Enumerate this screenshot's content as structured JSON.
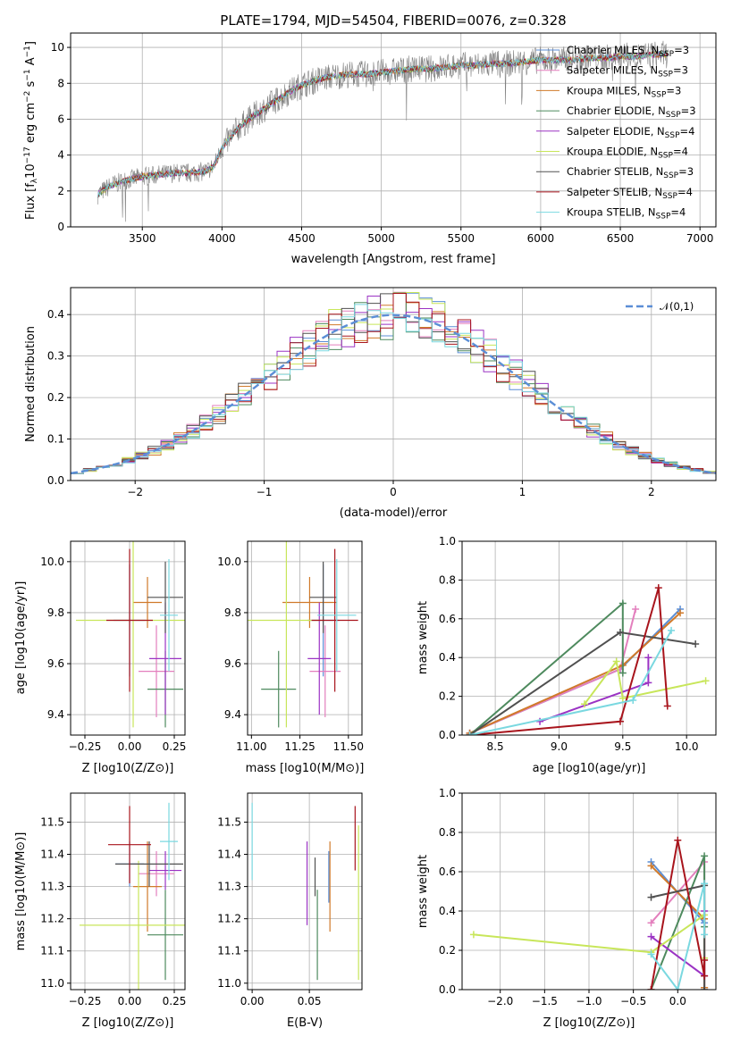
{
  "colors": {
    "chabrier_miles": "#5b8ed6",
    "salpeter_miles": "#e37fbd",
    "kroupa_miles": "#d07a2a",
    "chabrier_elodie": "#4e8a5e",
    "salpeter_elodie": "#9b33c4",
    "kroupa_elodie": "#c8e65a",
    "chabrier_stelib": "#505050",
    "salpeter_stelib": "#a8141c",
    "kroupa_stelib": "#7ad8e0",
    "data": "#808080",
    "gaussian": "#5b8ed6"
  },
  "chart_data": [
    {
      "id": "spectrum",
      "type": "line",
      "title": "PLATE=1794, MJD=54504, FIBERID=0076, z=0.328",
      "xlabel": "wavelength [Angstrom, rest frame]",
      "ylabel": "Flux [f_λ 10^-17 erg cm^-2 s^-1 A^-1]",
      "xlim": [
        3050,
        7100
      ],
      "ylim": [
        0,
        10.8
      ],
      "xticks": [
        "3500",
        "4000",
        "4500",
        "5000",
        "5500",
        "6000",
        "6500",
        "7000"
      ],
      "yticks": [
        "0",
        "2",
        "4",
        "6",
        "8",
        "10"
      ],
      "legend_position": "top-right",
      "legend": [
        "Chabrier MILES, N_SSP=3",
        "Salpeter MILES, N_SSP=3",
        "Kroupa MILES, N_SSP=3",
        "Chabrier ELODIE, N_SSP=3",
        "Salpeter ELODIE, N_SSP=4",
        "Kroupa ELODIE, N_SSP=4",
        "Chabrier STELIB, N_SSP=3",
        "Salpeter STELIB, N_SSP=4",
        "Kroupa STELIB, N_SSP=4"
      ],
      "model_continuum": {
        "x": [
          3220,
          3300,
          3400,
          3500,
          3600,
          3700,
          3800,
          3900,
          3950,
          4000,
          4100,
          4200,
          4300,
          4400,
          4500,
          4600,
          4700,
          4800,
          4900,
          5000,
          5100,
          5200,
          5300,
          5400,
          5500,
          5600,
          5700,
          5800,
          5900,
          6000,
          6100,
          6200,
          6300,
          6400,
          6500,
          6600,
          6700,
          6800
        ],
        "y": [
          1.8,
          2.3,
          2.6,
          2.8,
          2.9,
          3.0,
          3.0,
          3.1,
          3.4,
          4.4,
          5.5,
          6.2,
          6.8,
          7.4,
          7.9,
          8.2,
          8.4,
          8.5,
          8.5,
          8.6,
          8.7,
          8.8,
          8.8,
          8.9,
          9.0,
          9.0,
          9.1,
          9.1,
          9.2,
          9.3,
          9.3,
          9.3,
          9.4,
          9.4,
          9.5,
          9.5,
          9.6,
          9.6
        ]
      },
      "observed": {
        "noise_amplitude": 0.55,
        "x_range": [
          3220,
          6800
        ]
      }
    },
    {
      "id": "residuals",
      "type": "line",
      "xlabel": "(data-model)/error",
      "ylabel": "Normed distribution",
      "xlim": [
        -2.5,
        2.5
      ],
      "ylim": [
        0,
        0.465
      ],
      "xticks": [
        "−2",
        "−1",
        "0",
        "1",
        "2"
      ],
      "yticks": [
        "0.0",
        "0.1",
        "0.2",
        "0.3",
        "0.4"
      ],
      "legend": [
        "𝒩(0,1)"
      ],
      "legend_position": "top-right",
      "gaussian": {
        "mu": 0,
        "sigma": 1
      }
    },
    {
      "id": "age_vs_Z",
      "type": "scatter",
      "xlabel": "Z [log10(Z/Z⊙)]",
      "ylabel": "age [log10(age/yr)]",
      "xlim": [
        -0.33,
        0.31
      ],
      "ylim": [
        9.32,
        10.08
      ],
      "xticks": [
        "−0.25",
        "0.00",
        "0.25"
      ],
      "yticks": [
        "9.4",
        "9.6",
        "9.8",
        "10.0"
      ],
      "points": [
        {
          "model": "chabrier_miles",
          "x": 0.0,
          "xerr": 0.09,
          "y": 9.77,
          "yerr": 0.22
        },
        {
          "model": "salpeter_miles",
          "x": 0.15,
          "xerr": 0.1,
          "y": 9.57,
          "yerr": 0.18
        },
        {
          "model": "kroupa_miles",
          "x": 0.1,
          "xerr": 0.08,
          "y": 9.84,
          "yerr": 0.1
        },
        {
          "model": "chabrier_elodie",
          "x": 0.2,
          "xerr": 0.1,
          "y": 9.5,
          "yerr": 0.15
        },
        {
          "model": "salpeter_elodie",
          "x": 0.2,
          "xerr": 0.09,
          "y": 9.62,
          "yerr": 0.22
        },
        {
          "model": "kroupa_elodie",
          "x": 0.02,
          "xerr": 0.32,
          "y": 9.77,
          "yerr": 0.42
        },
        {
          "model": "chabrier_stelib",
          "x": 0.2,
          "xerr": 0.1,
          "y": 9.86,
          "yerr": 0.14
        },
        {
          "model": "salpeter_stelib",
          "x": 0.0,
          "xerr": 0.13,
          "y": 9.77,
          "yerr": 0.28
        },
        {
          "model": "kroupa_stelib",
          "x": 0.22,
          "xerr": 0.05,
          "y": 9.79,
          "yerr": 0.22
        }
      ]
    },
    {
      "id": "age_vs_mass",
      "type": "scatter",
      "xlabel": "mass [log10(M/M⊙)]",
      "xlim": [
        10.98,
        11.57
      ],
      "ylim": [
        9.32,
        10.08
      ],
      "xticks": [
        "11.00",
        "11.25",
        "11.50"
      ],
      "yticks": [
        "9.4",
        "9.6",
        "9.8",
        "10.0"
      ],
      "points": [
        {
          "model": "chabrier_miles",
          "x": 11.37,
          "xerr": 0.08,
          "y": 9.77,
          "yerr": 0.22
        },
        {
          "model": "salpeter_miles",
          "x": 11.38,
          "xerr": 0.08,
          "y": 9.57,
          "yerr": 0.18
        },
        {
          "model": "kroupa_miles",
          "x": 11.3,
          "xerr": 0.14,
          "y": 9.84,
          "yerr": 0.1
        },
        {
          "model": "chabrier_elodie",
          "x": 11.14,
          "xerr": 0.09,
          "y": 9.5,
          "yerr": 0.15
        },
        {
          "model": "salpeter_elodie",
          "x": 11.35,
          "xerr": 0.06,
          "y": 9.62,
          "yerr": 0.22
        },
        {
          "model": "kroupa_elodie",
          "x": 11.18,
          "xerr": 0.2,
          "y": 9.77,
          "yerr": 0.42
        },
        {
          "model": "chabrier_stelib",
          "x": 11.37,
          "xerr": 0.07,
          "y": 9.86,
          "yerr": 0.14
        },
        {
          "model": "salpeter_stelib",
          "x": 11.43,
          "xerr": 0.12,
          "y": 9.77,
          "yerr": 0.28
        },
        {
          "model": "kroupa_stelib",
          "x": 11.44,
          "xerr": 0.1,
          "y": 9.79,
          "yerr": 0.22
        }
      ]
    },
    {
      "id": "weight_vs_age",
      "type": "line",
      "xlabel": "age [log10(age/yr)]",
      "ylabel": "mass weight",
      "xlim": [
        8.24,
        10.23
      ],
      "ylim": [
        0,
        1.0
      ],
      "xticks": [
        "8.5",
        "9.0",
        "9.5",
        "10.0"
      ],
      "yticks": [
        "0.0",
        "0.2",
        "0.4",
        "0.6",
        "0.8",
        "1.0"
      ],
      "series": [
        {
          "model": "chabrier_miles",
          "x": [
            8.3,
            9.48,
            9.95
          ],
          "y": [
            0.01,
            0.34,
            0.65
          ]
        },
        {
          "model": "salpeter_miles",
          "x": [
            8.3,
            9.48,
            9.6
          ],
          "y": [
            0.01,
            0.34,
            0.65
          ]
        },
        {
          "model": "kroupa_miles",
          "x": [
            8.3,
            9.5,
            9.95
          ],
          "y": [
            0.01,
            0.36,
            0.63
          ]
        },
        {
          "model": "chabrier_elodie",
          "x": [
            8.3,
            9.5,
            9.5
          ],
          "y": [
            0.0,
            0.68,
            0.32
          ]
        },
        {
          "model": "salpeter_elodie",
          "x": [
            8.85,
            9.7,
            9.7
          ],
          "y": [
            0.07,
            0.27,
            0.4
          ]
        },
        {
          "model": "kroupa_elodie",
          "x": [
            9.2,
            9.45,
            9.5,
            10.15
          ],
          "y": [
            0.16,
            0.38,
            0.19,
            0.28
          ]
        },
        {
          "model": "chabrier_stelib",
          "x": [
            8.3,
            9.48,
            10.07
          ],
          "y": [
            0.0,
            0.53,
            0.47
          ]
        },
        {
          "model": "salpeter_stelib",
          "x": [
            8.3,
            9.48,
            9.78,
            9.85
          ],
          "y": [
            0.0,
            0.07,
            0.76,
            0.15
          ]
        },
        {
          "model": "kroupa_stelib",
          "x": [
            8.3,
            9.58,
            9.88
          ],
          "y": [
            0.0,
            0.18,
            0.54
          ]
        }
      ]
    },
    {
      "id": "mass_vs_Z",
      "type": "scatter",
      "xlabel": "Z [log10(Z/Z⊙)]",
      "ylabel": "mass [log10(M/M⊙)]",
      "xlim": [
        -0.33,
        0.31
      ],
      "ylim": [
        10.98,
        11.59
      ],
      "xticks": [
        "−0.25",
        "0.00",
        "0.25"
      ],
      "yticks": [
        "11.0",
        "11.1",
        "11.2",
        "11.3",
        "11.4",
        "11.5"
      ],
      "points": [
        {
          "model": "chabrier_miles",
          "x": 0.0,
          "xerr": 0.08,
          "y": 11.37,
          "yerr": 0.07
        },
        {
          "model": "salpeter_miles",
          "x": 0.15,
          "xerr": 0.1,
          "y": 11.34,
          "yerr": 0.07
        },
        {
          "model": "kroupa_miles",
          "x": 0.1,
          "xerr": 0.08,
          "y": 11.3,
          "yerr": 0.14
        },
        {
          "model": "chabrier_elodie",
          "x": 0.2,
          "xerr": 0.1,
          "y": 11.15,
          "yerr": 0.14
        },
        {
          "model": "salpeter_elodie",
          "x": 0.2,
          "xerr": 0.09,
          "y": 11.35,
          "yerr": 0.06
        },
        {
          "model": "kroupa_elodie",
          "x": 0.05,
          "xerr": 0.33,
          "y": 11.18,
          "yerr": 0.2
        },
        {
          "model": "chabrier_stelib",
          "x": 0.11,
          "xerr": 0.19,
          "y": 11.37,
          "yerr": 0.07
        },
        {
          "model": "salpeter_stelib",
          "x": 0.0,
          "xerr": 0.12,
          "y": 11.43,
          "yerr": 0.12
        },
        {
          "model": "kroupa_stelib",
          "x": 0.22,
          "xerr": 0.05,
          "y": 11.44,
          "yerr": 0.12
        }
      ]
    },
    {
      "id": "mass_vs_ebv",
      "type": "scatter",
      "xlabel": "E(B-V)",
      "xlim": [
        -0.004,
        0.096
      ],
      "ylim": [
        10.98,
        11.59
      ],
      "xticks": [
        "0.00",
        "0.05"
      ],
      "yticks": [
        "11.0",
        "11.1",
        "11.2",
        "11.3",
        "11.4",
        "11.5"
      ],
      "points": [
        {
          "model": "kroupa_stelib",
          "x": 0.0,
          "y": 11.44,
          "yerr": 0.12
        },
        {
          "model": "salpeter_elodie",
          "x": 0.048,
          "y": 11.31,
          "yerr": 0.13
        },
        {
          "model": "chabrier_stelib",
          "x": 0.055,
          "y": 11.33,
          "yerr": 0.06
        },
        {
          "model": "chabrier_elodie",
          "x": 0.057,
          "y": 11.15,
          "yerr": 0.14
        },
        {
          "model": "kroupa_miles",
          "x": 0.068,
          "y": 11.3,
          "yerr": 0.14
        },
        {
          "model": "chabrier_miles",
          "x": 0.067,
          "y": 11.33,
          "yerr": 0.08
        },
        {
          "model": "salpeter_stelib",
          "x": 0.09,
          "y": 11.45,
          "yerr": 0.1
        },
        {
          "model": "kroupa_elodie",
          "x": 0.093,
          "y": 11.25,
          "yerr": 0.24
        }
      ]
    },
    {
      "id": "weight_vs_Z",
      "type": "line",
      "xlabel": "Z [log10(Z/Z⊙)]",
      "ylabel": "mass weight",
      "xlim": [
        -2.43,
        0.43
      ],
      "ylim": [
        0,
        1.0
      ],
      "xticks": [
        "−2.0",
        "−1.5",
        "−1.0",
        "−0.5",
        "0.0"
      ],
      "yticks": [
        "0.0",
        "0.2",
        "0.4",
        "0.6",
        "0.8",
        "1.0"
      ],
      "series": [
        {
          "model": "chabrier_miles",
          "x": [
            -0.3,
            0.3,
            0.3
          ],
          "y": [
            0.65,
            0.34,
            0.01
          ]
        },
        {
          "model": "salpeter_miles",
          "x": [
            -0.3,
            0.3,
            0.3
          ],
          "y": [
            0.34,
            0.65,
            0.01
          ]
        },
        {
          "model": "kroupa_miles",
          "x": [
            -0.3,
            0.3,
            0.3
          ],
          "y": [
            0.63,
            0.36,
            0.01
          ]
        },
        {
          "model": "chabrier_elodie",
          "x": [
            -0.3,
            0.3,
            0.3
          ],
          "y": [
            0.0,
            0.68,
            0.32
          ]
        },
        {
          "model": "salpeter_elodie",
          "x": [
            -0.3,
            0.3,
            0.3
          ],
          "y": [
            0.27,
            0.07,
            0.4
          ]
        },
        {
          "model": "kroupa_elodie",
          "x": [
            -2.3,
            -0.3,
            0.3,
            0.3
          ],
          "y": [
            0.28,
            0.19,
            0.38,
            0.16
          ]
        },
        {
          "model": "chabrier_stelib",
          "x": [
            -0.3,
            0.3,
            0.3
          ],
          "y": [
            0.47,
            0.53,
            0.0
          ]
        },
        {
          "model": "salpeter_stelib",
          "x": [
            -0.3,
            0.0,
            0.3,
            0.3
          ],
          "y": [
            0.0,
            0.76,
            0.07,
            0.15
          ]
        },
        {
          "model": "kroupa_stelib",
          "x": [
            -0.3,
            0.0,
            0.3,
            0.3
          ],
          "y": [
            0.18,
            0.0,
            0.54,
            0.28
          ]
        }
      ]
    }
  ]
}
